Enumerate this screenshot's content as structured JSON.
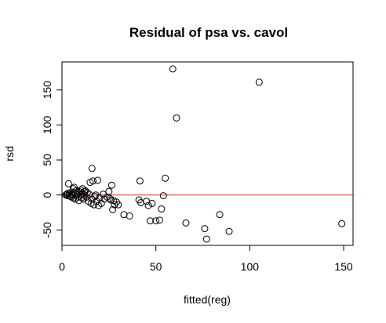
{
  "chart_data": {
    "type": "scatter",
    "title": "Residual of psa vs. cavol",
    "xlabel": "fitted(reg)",
    "ylabel": "rsd",
    "xlim": [
      0,
      155
    ],
    "ylim": [
      -72,
      190
    ],
    "x_ticks": [
      0,
      50,
      100,
      150
    ],
    "y_ticks": [
      -50,
      0,
      50,
      100,
      150
    ],
    "x_tick_labels": [
      "0",
      "50",
      "100",
      "150"
    ],
    "y_tick_labels": [
      "-50",
      "0",
      "50",
      "100",
      "150"
    ],
    "reference_line": {
      "y": 0,
      "color": "#e0332f"
    },
    "grid": false,
    "legend": false,
    "point_style": "open-circle",
    "points": [
      [
        2,
        0
      ],
      [
        2.5,
        1
      ],
      [
        3,
        -1
      ],
      [
        3,
        2
      ],
      [
        3.5,
        16
      ],
      [
        4,
        0
      ],
      [
        4,
        3
      ],
      [
        4.5,
        -2
      ],
      [
        5,
        1
      ],
      [
        5,
        -3
      ],
      [
        5.5,
        0
      ],
      [
        6,
        4
      ],
      [
        6,
        9
      ],
      [
        6,
        -4
      ],
      [
        6.5,
        11
      ],
      [
        7,
        2
      ],
      [
        7,
        -6
      ],
      [
        7.5,
        6
      ],
      [
        8,
        0
      ],
      [
        8,
        3
      ],
      [
        8.5,
        -3
      ],
      [
        9,
        5
      ],
      [
        9,
        -8
      ],
      [
        10,
        0
      ],
      [
        10,
        7
      ],
      [
        10.5,
        -4
      ],
      [
        11,
        2
      ],
      [
        11,
        9
      ],
      [
        11.5,
        -6
      ],
      [
        12,
        0
      ],
      [
        12,
        5
      ],
      [
        12.5,
        6
      ],
      [
        13,
        -3
      ],
      [
        13.5,
        3
      ],
      [
        14,
        -9
      ],
      [
        14.5,
        1
      ],
      [
        15,
        18
      ],
      [
        15.5,
        -12
      ],
      [
        16,
        -6
      ],
      [
        16,
        38
      ],
      [
        16.5,
        20
      ],
      [
        17,
        -14
      ],
      [
        17.5,
        -2
      ],
      [
        18,
        0
      ],
      [
        18.5,
        -9
      ],
      [
        19,
        21
      ],
      [
        19.5,
        -15
      ],
      [
        20,
        -4
      ],
      [
        21,
        -12
      ],
      [
        22,
        1
      ],
      [
        22.5,
        -6
      ],
      [
        24,
        -3
      ],
      [
        25,
        5
      ],
      [
        25.5,
        -5
      ],
      [
        26,
        -7
      ],
      [
        26.5,
        14
      ],
      [
        27,
        -21
      ],
      [
        27.5,
        -8
      ],
      [
        28,
        -14
      ],
      [
        29,
        -10
      ],
      [
        30,
        -14
      ],
      [
        33,
        -28
      ],
      [
        36,
        -30
      ],
      [
        41,
        -7
      ],
      [
        41.5,
        20
      ],
      [
        42,
        -11
      ],
      [
        45,
        -9
      ],
      [
        46,
        -15
      ],
      [
        47,
        -37
      ],
      [
        48,
        -12
      ],
      [
        50,
        -37
      ],
      [
        52,
        -36
      ],
      [
        53,
        -20
      ],
      [
        54,
        -1
      ],
      [
        55,
        24
      ],
      [
        59,
        180
      ],
      [
        61,
        110
      ],
      [
        66,
        -40
      ],
      [
        76,
        -48
      ],
      [
        77,
        -63
      ],
      [
        84,
        -28
      ],
      [
        89,
        -52
      ],
      [
        105,
        161
      ],
      [
        149,
        -41
      ]
    ]
  }
}
